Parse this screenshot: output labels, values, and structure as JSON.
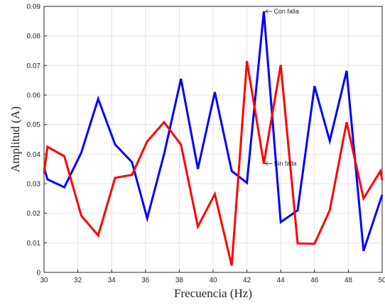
{
  "chart_data": {
    "type": "line",
    "title": "",
    "xlabel": "Frecuencia (Hz)",
    "ylabel": "Amplitud (A)",
    "xlim": [
      30,
      50
    ],
    "ylim": [
      0,
      0.09
    ],
    "grid": true,
    "x_ticks": [
      "30",
      "32",
      "34",
      "36",
      "38",
      "40",
      "42",
      "44",
      "46",
      "48",
      "50"
    ],
    "y_ticks": [
      "0",
      "0.01",
      "0.02",
      "0.03",
      "0.04",
      "0.05",
      "0.06",
      "0.07",
      "0.08",
      "0.09"
    ],
    "x": [
      30,
      30.2,
      31.2,
      32.2,
      33.2,
      34.2,
      35.2,
      36.1,
      37.1,
      38.1,
      39.1,
      40.1,
      41.1,
      42.0,
      43.0,
      44.0,
      45.0,
      46.0,
      46.9,
      47.9,
      48.9,
      49.9,
      50
    ],
    "series": [
      {
        "color": "#0000ff",
        "values": [
          0.0355,
          0.0315,
          0.0288,
          0.0405,
          0.0587,
          0.0433,
          0.0373,
          0.0183,
          0.04,
          0.0655,
          0.035,
          0.061,
          0.0343,
          0.0303,
          0.0883,
          0.017,
          0.021,
          0.063,
          0.0445,
          0.0682,
          0.0073,
          0.0245,
          0.0262
        ]
      },
      {
        "color": "#ff0000",
        "values": [
          0.0335,
          0.0425,
          0.0393,
          0.0192,
          0.0125,
          0.032,
          0.033,
          0.0443,
          0.0508,
          0.0432,
          0.0155,
          0.0265,
          0.0023,
          0.0715,
          0.0368,
          0.0702,
          0.0098,
          0.0097,
          0.021,
          0.0508,
          0.025,
          0.0343,
          0.0312
        ]
      }
    ],
    "annotations": [
      {
        "text": "Con falla",
        "x": 43.0,
        "y": 0.0883
      },
      {
        "text": "Sin falla",
        "x": 43.0,
        "y": 0.0368
      }
    ]
  }
}
